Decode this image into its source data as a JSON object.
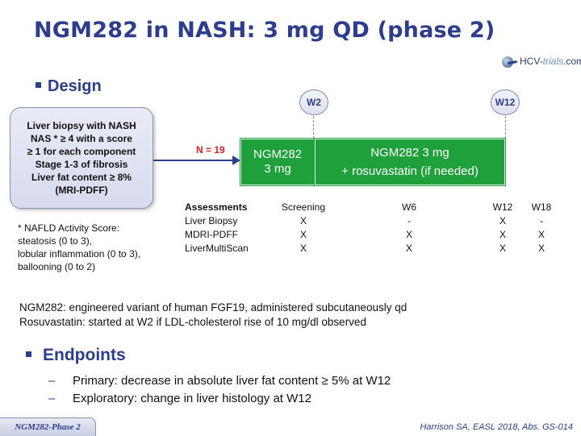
{
  "title": "NGM282 in NASH: 3 mg QD (phase 2)",
  "logo": {
    "prefix": "HCV-",
    "middle": "trials",
    "suffix": ".com"
  },
  "design": {
    "heading": "Design",
    "criteria": [
      "Liver biopsy with NASH",
      "NAS * ≥ 4 with a score",
      "≥ 1 for each component",
      "Stage 1-3 of fibrosis",
      "Liver fat content ≥ 8%",
      "(MRI-PDFF)"
    ],
    "n_label": "N = 19",
    "phase1": [
      "NGM282",
      "3 mg"
    ],
    "phase2": [
      "NGM282 3 mg",
      "+ rosuvastatin (if needed)"
    ],
    "week_markers": [
      "W2",
      "W12"
    ]
  },
  "assessments": {
    "headers": [
      "Assessments",
      "Screening",
      "W6",
      "W12",
      "W18"
    ],
    "rows": [
      [
        "Liver Biopsy",
        "X",
        "-",
        "X",
        "-"
      ],
      [
        "MDRI-PDFF",
        "X",
        "X",
        "X",
        "X"
      ],
      [
        "LiverMultiScan",
        "X",
        "X",
        "X",
        "X"
      ]
    ]
  },
  "footnote": [
    "* NAFLD Activity Score:",
    "steatosis (0 to 3),",
    "lobular inflammation (0 to 3),",
    "ballooning (0 to 2)"
  ],
  "description": [
    "NGM282: engineered variant of human FGF19, administered subcutaneously qd",
    "Rosuvastatin: started at W2 if LDL-cholesterol rise of 10 mg/dl observed"
  ],
  "endpoints": {
    "heading": "Endpoints",
    "items": [
      "Primary: decrease in absolute liver fat content ≥ 5% at W12",
      "Exploratory: change in liver histology at W12"
    ],
    "marker": "–"
  },
  "footer": {
    "tab": "NGM282-Phase 2",
    "citation": "Harrison SA, EASL 2018, Abs. GS-014"
  }
}
